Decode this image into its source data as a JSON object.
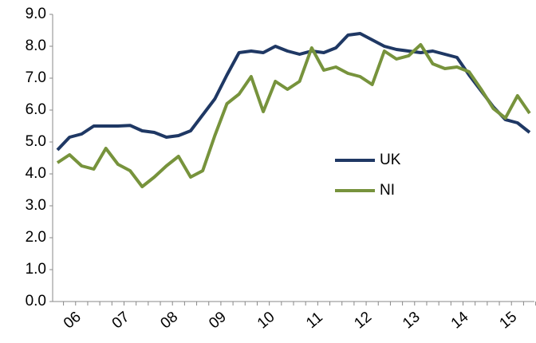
{
  "chart_data": {
    "type": "line",
    "categories": [
      null,
      "06",
      null,
      null,
      null,
      "07",
      null,
      null,
      null,
      "08",
      null,
      null,
      null,
      "09",
      null,
      null,
      null,
      "10",
      null,
      null,
      null,
      "11",
      null,
      null,
      null,
      "12",
      null,
      null,
      null,
      "13",
      null,
      null,
      null,
      "14",
      null,
      null,
      null,
      "15",
      null,
      null
    ],
    "series": [
      {
        "name": "UK",
        "color": "#1f3864",
        "values": [
          4.75,
          5.15,
          5.25,
          5.5,
          5.5,
          5.5,
          5.52,
          5.35,
          5.3,
          5.15,
          5.2,
          5.35,
          5.85,
          6.35,
          7.1,
          7.8,
          7.85,
          7.8,
          8.0,
          7.85,
          7.75,
          7.85,
          7.8,
          7.95,
          8.35,
          8.4,
          8.2,
          8.0,
          7.9,
          7.85,
          7.8,
          7.85,
          7.75,
          7.65,
          7.1,
          6.6,
          6.1,
          5.7,
          5.6,
          5.3
        ]
      },
      {
        "name": "NI",
        "color": "#77933c",
        "values": [
          4.35,
          4.6,
          4.25,
          4.15,
          4.8,
          4.3,
          4.1,
          3.6,
          3.9,
          4.25,
          4.55,
          3.9,
          4.1,
          5.2,
          6.2,
          6.5,
          7.05,
          5.95,
          6.9,
          6.65,
          6.9,
          7.95,
          7.25,
          7.35,
          7.15,
          7.05,
          6.8,
          7.85,
          7.6,
          7.7,
          8.05,
          7.45,
          7.3,
          7.35,
          7.2,
          6.65,
          6.05,
          5.75,
          6.45,
          5.9
        ]
      }
    ],
    "ylim": [
      0,
      9
    ],
    "yticks": [
      {
        "value": 0,
        "label": "0.0"
      },
      {
        "value": 1,
        "label": "1.0"
      },
      {
        "value": 2,
        "label": "2.0"
      },
      {
        "value": 3,
        "label": "3.0"
      },
      {
        "value": 4,
        "label": "4.0"
      },
      {
        "value": 5,
        "label": "5.0"
      },
      {
        "value": 6,
        "label": "6.0"
      },
      {
        "value": 7,
        "label": "7.0"
      },
      {
        "value": 8,
        "label": "8.0"
      },
      {
        "value": 9,
        "label": "9.0"
      }
    ]
  }
}
